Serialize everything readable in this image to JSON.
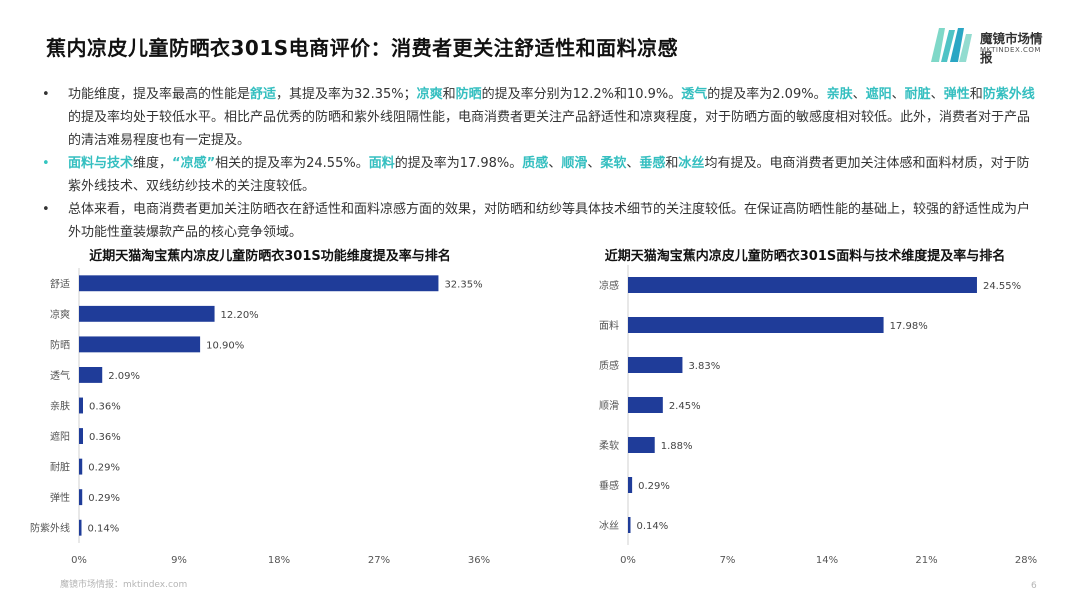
{
  "title": "蕉内凉皮儿童防晒衣301S电商评价：消费者更关注舒适性和面料凉感",
  "logo": {
    "name_cn": "魔镜市场情报",
    "name_en": "MKTINDEX.COM"
  },
  "bullets": [
    {
      "dot": "•",
      "segments": [
        {
          "t": "功能维度，提及率最高的性能是"
        },
        {
          "t": "舒适",
          "hl": true
        },
        {
          "t": "，其提及率为32.35%；"
        },
        {
          "t": "凉爽",
          "hl": true
        },
        {
          "t": "和"
        },
        {
          "t": "防晒",
          "hl": true
        },
        {
          "t": "的提及率分别为12.2%和10.9%。"
        },
        {
          "t": "透气",
          "hl": true
        },
        {
          "t": "的提及率为2.09%。"
        },
        {
          "t": "亲肤",
          "hl": true
        },
        {
          "t": "、"
        },
        {
          "t": "遮阳",
          "hl": true
        },
        {
          "t": "、"
        },
        {
          "t": "耐脏",
          "hl": true
        },
        {
          "t": "、"
        },
        {
          "t": "弹性",
          "hl": true
        },
        {
          "t": "和"
        },
        {
          "t": "防紫外线",
          "hl": true
        },
        {
          "t": "的提及率均处于较低水平。相比产品优秀的防晒和紫外线阻隔性能，电商消费者更关注产品舒适性和凉爽程度，对于防晒方面的敏感度相对较低。此外，消费者对于产品的清洁难易程度也有一定提及。"
        }
      ]
    },
    {
      "dot": "•",
      "teal": true,
      "segments": [
        {
          "t": "面料与技术",
          "hl": true
        },
        {
          "t": "维度，"
        },
        {
          "t": "“凉感”",
          "hl": true
        },
        {
          "t": "相关的提及率为24.55%。"
        },
        {
          "t": "面料",
          "hl": true
        },
        {
          "t": "的提及率为17.98%。"
        },
        {
          "t": "质感",
          "hl": true
        },
        {
          "t": "、"
        },
        {
          "t": "顺滑",
          "hl": true
        },
        {
          "t": "、"
        },
        {
          "t": "柔软",
          "hl": true
        },
        {
          "t": "、"
        },
        {
          "t": "垂感",
          "hl": true
        },
        {
          "t": "和"
        },
        {
          "t": "冰丝",
          "hl": true
        },
        {
          "t": "均有提及。电商消费者更加关注体感和面料材质，对于防紫外线技术、双线纺纱技术的关注度较低。"
        }
      ]
    },
    {
      "dot": "•",
      "segments": [
        {
          "t": "总体来看，电商消费者更加关注防晒衣在舒适性和面料凉感方面的效果，对防晒和纺纱等具体技术细节的关注度较低。在保证高防晒性能的基础上，较强的舒适性成为户外功能性童装爆款产品的核心竞争领域。"
        }
      ]
    }
  ],
  "chart_data": [
    {
      "type": "bar",
      "orientation": "horizontal",
      "title": "近期天猫淘宝蕉内凉皮儿童防晒衣301S功能维度提及率与排名",
      "categories": [
        "舒适",
        "凉爽",
        "防晒",
        "透气",
        "亲肤",
        "遮阳",
        "耐脏",
        "弹性",
        "防紫外线"
      ],
      "values": [
        32.35,
        12.2,
        10.9,
        2.09,
        0.36,
        0.36,
        0.29,
        0.29,
        0.14
      ],
      "value_labels": [
        "32.35%",
        "12.20%",
        "10.90%",
        "2.09%",
        "0.36%",
        "0.36%",
        "0.29%",
        "0.29%",
        "0.14%"
      ],
      "xlim": [
        0,
        36
      ],
      "xticks": [
        0,
        9,
        18,
        27,
        36
      ],
      "xtick_labels": [
        "0%",
        "9%",
        "18%",
        "27%",
        "36%"
      ],
      "grid": false,
      "color": "#1f3c99"
    },
    {
      "type": "bar",
      "orientation": "horizontal",
      "title": "近期天猫淘宝蕉内凉皮儿童防晒衣301S面料与技术维度提及率与排名",
      "categories": [
        "凉感",
        "面料",
        "质感",
        "顺滑",
        "柔软",
        "垂感",
        "冰丝"
      ],
      "values": [
        24.55,
        17.98,
        3.83,
        2.45,
        1.88,
        0.29,
        0.14
      ],
      "value_labels": [
        "24.55%",
        "17.98%",
        "3.83%",
        "2.45%",
        "1.88%",
        "0.29%",
        "0.14%"
      ],
      "xlim": [
        0,
        28
      ],
      "xticks": [
        0,
        7,
        14,
        21,
        28
      ],
      "xtick_labels": [
        "0%",
        "7%",
        "14%",
        "21%",
        "28%"
      ],
      "grid": false,
      "color": "#1f3c99"
    }
  ],
  "footer": "魔镜市场情报：mktindex.com",
  "page_number": "6"
}
